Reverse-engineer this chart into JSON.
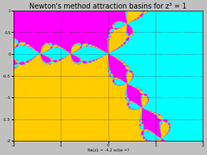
{
  "title": "Newton's method attraction basins for z³ = 1",
  "xlabel": "Re(z1 = -4.2 scl(e =?",
  "xlim": [
    -2,
    2
  ],
  "ylim": [
    -2,
    1
  ],
  "grid": true,
  "resolution": 600,
  "max_iter": 80,
  "colors_basin": [
    "#ffff00",
    "#ff00ff",
    "#00ffff"
  ],
  "background": "#808080",
  "figsize": [
    2.9,
    2.18
  ],
  "dpi": 100,
  "yticks": [
    -2,
    -1.5,
    -1,
    -0.5,
    0,
    0.5,
    1
  ],
  "xticks": [
    -2,
    -1,
    0,
    1,
    2
  ],
  "title_fontsize": 7,
  "tick_fontsize": 4,
  "xlabel_fontsize": 4,
  "facecolor": "#c0c0c0"
}
